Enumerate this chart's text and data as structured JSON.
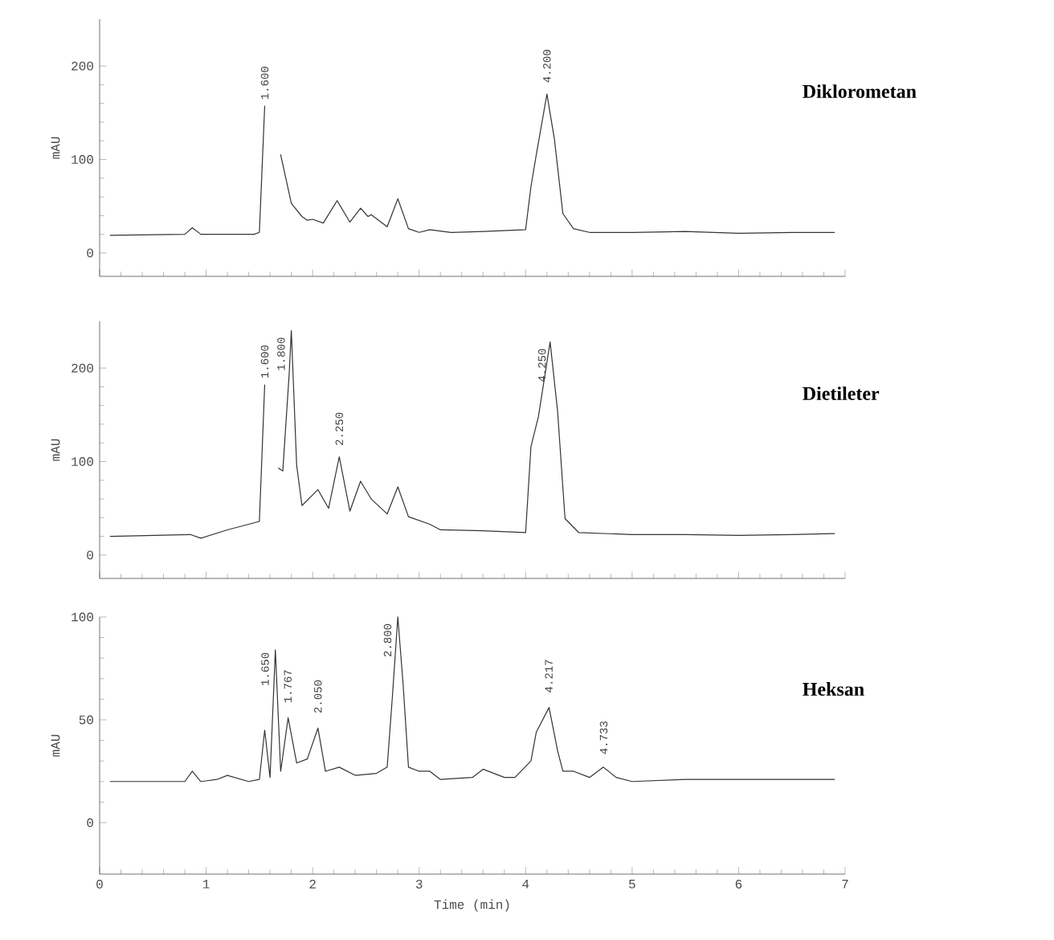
{
  "chart_data": [
    {
      "type": "line",
      "title": "Diklorometan",
      "ylabel": "mAU",
      "color": "#333333",
      "xlim": [
        0,
        7
      ],
      "xticks": [
        0,
        1,
        2,
        3,
        4,
        5,
        6,
        7
      ],
      "ylim": [
        -25,
        250
      ],
      "yticks": [
        0,
        100,
        200
      ],
      "tick_labels": "y",
      "x": [
        0.1,
        0.8,
        0.87,
        0.95,
        1.45,
        1.5,
        1.55,
        1.6,
        1.65,
        1.7,
        1.75,
        1.8,
        1.9,
        1.95,
        2.0,
        2.1,
        2.23,
        2.35,
        2.45,
        2.52,
        2.55,
        2.7,
        2.8,
        2.9,
        3.0,
        3.1,
        3.3,
        3.6,
        4.0,
        4.05,
        4.1,
        4.2,
        4.27,
        4.35,
        4.45,
        4.6,
        5.0,
        5.5,
        6.0,
        6.5,
        6.9
      ],
      "values": [
        19,
        20,
        27,
        20,
        20,
        22,
        157,
        null,
        null,
        105,
        79,
        53,
        39,
        35,
        36,
        32,
        56,
        33,
        48,
        39,
        41,
        28,
        58,
        26,
        22,
        25,
        22,
        23,
        25,
        71,
        105,
        170,
        122,
        42,
        26,
        22,
        22,
        23,
        21,
        22,
        22
      ],
      "annotations": [
        {
          "text": "1.600",
          "x": 1.55,
          "y": 157
        },
        {
          "text": "4.200",
          "x": 4.2,
          "y": 175
        }
      ]
    },
    {
      "type": "line",
      "title": "Dietileter",
      "ylabel": "mAU",
      "color": "#333333",
      "xlim": [
        0,
        7
      ],
      "xticks": [
        0,
        1,
        2,
        3,
        4,
        5,
        6,
        7
      ],
      "ylim": [
        -25,
        250
      ],
      "yticks": [
        0,
        100,
        200
      ],
      "tick_labels": "y",
      "x": [
        0.1,
        0.85,
        0.95,
        1.2,
        1.4,
        1.5,
        1.55,
        1.6,
        1.63,
        1.68,
        1.72,
        1.78,
        1.8,
        1.85,
        1.9,
        2.05,
        2.15,
        2.25,
        2.35,
        2.45,
        2.55,
        2.7,
        2.8,
        2.9,
        3.1,
        3.2,
        3.6,
        4.0,
        4.05,
        4.12,
        4.23,
        4.3,
        4.37,
        4.5,
        5.0,
        5.5,
        6.0,
        6.5,
        6.9
      ],
      "values": [
        20,
        22,
        18,
        27,
        33,
        36,
        182,
        null,
        null,
        93,
        90,
        194,
        240,
        96,
        53,
        70,
        50,
        105,
        47,
        79,
        60,
        44,
        73,
        41,
        33,
        27,
        26,
        24,
        116,
        148,
        228,
        154,
        39,
        24,
        22,
        22,
        21,
        22,
        23
      ],
      "annotations": [
        {
          "text": "1.600",
          "x": 1.55,
          "y": 182
        },
        {
          "text": "1.800",
          "x": 1.8,
          "y": 240
        },
        {
          "text": "2.250",
          "x": 2.25,
          "y": 110
        },
        {
          "text": "4.250",
          "x": 4.25,
          "y": 228
        }
      ]
    },
    {
      "type": "line",
      "title": "Heksan",
      "ylabel": "mAU",
      "xlabel": "Time (min)",
      "color": "#333333",
      "xlim": [
        0,
        7
      ],
      "xticks": [
        0,
        1,
        2,
        3,
        4,
        5,
        6,
        7
      ],
      "ylim": [
        -25,
        100
      ],
      "yticks": [
        0,
        50,
        100
      ],
      "x": [
        0.1,
        0.8,
        0.87,
        0.95,
        1.1,
        1.2,
        1.4,
        1.5,
        1.55,
        1.6,
        1.65,
        1.7,
        1.77,
        1.85,
        1.95,
        2.05,
        2.12,
        2.25,
        2.4,
        2.6,
        2.7,
        2.75,
        2.8,
        2.85,
        2.9,
        3.0,
        3.1,
        3.2,
        3.5,
        3.6,
        3.8,
        3.9,
        4.05,
        4.1,
        4.22,
        4.3,
        4.35,
        4.45,
        4.6,
        4.73,
        4.85,
        5.0,
        5.5,
        6.0,
        6.5,
        6.9
      ],
      "values": [
        20,
        20,
        25,
        20,
        21,
        23,
        20,
        21,
        45,
        22,
        84,
        25,
        51,
        29,
        31,
        46,
        25,
        27,
        23,
        24,
        27,
        62,
        100,
        67,
        27,
        25,
        25,
        21,
        22,
        26,
        22,
        22,
        30,
        44,
        56,
        35,
        25,
        25,
        22,
        27,
        22,
        20,
        21,
        21,
        21,
        21
      ],
      "annotations": [
        {
          "text": "1.650",
          "x": 1.65,
          "y": 86
        },
        {
          "text": "1.767",
          "x": 1.767,
          "y": 55
        },
        {
          "text": "2.050",
          "x": 2.05,
          "y": 50
        },
        {
          "text": "2.800",
          "x": 2.8,
          "y": 100
        },
        {
          "text": "4.217",
          "x": 4.217,
          "y": 60
        },
        {
          "text": "4.733",
          "x": 4.733,
          "y": 30
        }
      ]
    }
  ]
}
